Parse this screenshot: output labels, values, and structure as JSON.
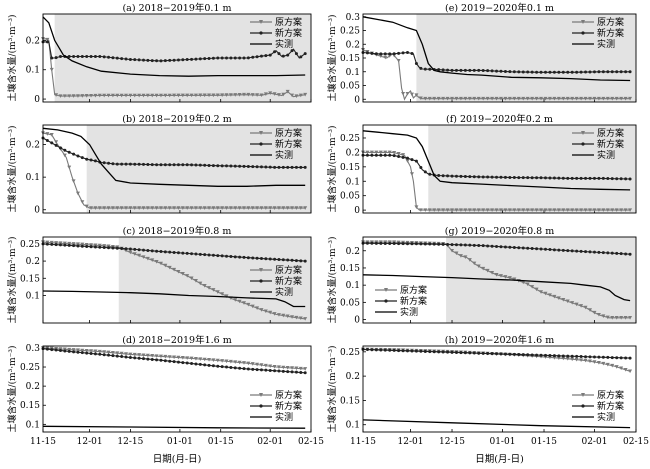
{
  "figure": {
    "ylabel": "土壤含水量/(m³·m⁻³)",
    "xlabel": "日期(月-日)",
    "xtick_labels": [
      "11-15",
      "12-01",
      "12-15",
      "01-01",
      "01-15",
      "02-01",
      "02-15"
    ],
    "legend_labels": [
      "原方案",
      "新方案",
      "实测"
    ],
    "colors": {
      "original": "#7a7a7a",
      "new": "#222222",
      "observed": "#000000",
      "shade": "#e3e3e3"
    }
  },
  "chart_data": [
    {
      "type": "line",
      "title": "(a) 2018−2019年0.1 m",
      "ylim": [
        -0.01,
        0.29
      ],
      "yticks": [
        0,
        0.1,
        0.2
      ],
      "shade_start": 4,
      "series": [
        {
          "name": "原方案",
          "x": [
            0,
            1,
            2,
            3,
            4,
            6,
            10,
            20,
            40,
            60,
            70,
            75,
            78,
            82,
            84,
            86,
            90
          ],
          "values": [
            0.205,
            0.205,
            0.2,
            0.1,
            0.015,
            0.01,
            0.01,
            0.012,
            0.012,
            0.013,
            0.015,
            0.013,
            0.02,
            0.012,
            0.025,
            0.008,
            0.015
          ]
        },
        {
          "name": "新方案",
          "x": [
            0,
            2,
            3,
            4,
            6,
            10,
            20,
            30,
            40,
            50,
            60,
            70,
            78,
            80,
            82,
            84,
            86,
            88,
            90
          ],
          "values": [
            0.195,
            0.195,
            0.14,
            0.14,
            0.145,
            0.145,
            0.145,
            0.135,
            0.13,
            0.135,
            0.14,
            0.14,
            0.15,
            0.165,
            0.145,
            0.15,
            0.17,
            0.14,
            0.155
          ]
        },
        {
          "name": "实测",
          "x": [
            0,
            2,
            4,
            7,
            10,
            15,
            20,
            30,
            40,
            50,
            60,
            70,
            80,
            90
          ],
          "values": [
            0.28,
            0.26,
            0.2,
            0.15,
            0.13,
            0.11,
            0.095,
            0.085,
            0.08,
            0.078,
            0.08,
            0.08,
            0.08,
            0.082
          ]
        }
      ]
    },
    {
      "type": "line",
      "title": "(b) 2018−2019年0.2 m",
      "ylim": [
        -0.01,
        0.26
      ],
      "yticks": [
        0,
        0.1,
        0.2
      ],
      "shade_start": 15,
      "series": [
        {
          "name": "原方案",
          "x": [
            0,
            3,
            5,
            8,
            10,
            12,
            14,
            16,
            20,
            40,
            60,
            80,
            90
          ],
          "values": [
            0.235,
            0.23,
            0.2,
            0.16,
            0.1,
            0.05,
            0.015,
            0.005,
            0.005,
            0.005,
            0.005,
            0.005,
            0.005
          ]
        },
        {
          "name": "新方案",
          "x": [
            0,
            4,
            8,
            12,
            15,
            18,
            20,
            25,
            30,
            40,
            50,
            60,
            70,
            80,
            90
          ],
          "values": [
            0.22,
            0.2,
            0.18,
            0.165,
            0.155,
            0.15,
            0.145,
            0.14,
            0.14,
            0.138,
            0.138,
            0.135,
            0.133,
            0.13,
            0.13
          ]
        },
        {
          "name": "实测",
          "x": [
            0,
            5,
            10,
            13,
            16,
            18,
            20,
            23,
            25,
            30,
            40,
            50,
            60,
            70,
            80,
            90
          ],
          "values": [
            0.25,
            0.245,
            0.235,
            0.225,
            0.2,
            0.17,
            0.14,
            0.11,
            0.09,
            0.082,
            0.078,
            0.075,
            0.072,
            0.072,
            0.075,
            0.075
          ]
        }
      ]
    },
    {
      "type": "line",
      "title": "(c) 2018−2019年0.8 m",
      "ylim": [
        0.02,
        0.27
      ],
      "yticks": [
        0.1,
        0.15,
        0.2,
        0.25
      ],
      "shade_start": 26,
      "series": [
        {
          "name": "原方案",
          "x": [
            0,
            10,
            20,
            26,
            30,
            35,
            40,
            45,
            50,
            55,
            60,
            65,
            70,
            75,
            80,
            85,
            90
          ],
          "values": [
            0.255,
            0.25,
            0.245,
            0.24,
            0.225,
            0.21,
            0.195,
            0.175,
            0.155,
            0.13,
            0.11,
            0.09,
            0.075,
            0.058,
            0.045,
            0.038,
            0.032
          ]
        },
        {
          "name": "新方案",
          "x": [
            0,
            10,
            20,
            30,
            40,
            50,
            60,
            70,
            80,
            90
          ],
          "values": [
            0.25,
            0.245,
            0.24,
            0.235,
            0.228,
            0.222,
            0.216,
            0.21,
            0.205,
            0.2
          ]
        },
        {
          "name": "实测",
          "x": [
            0,
            10,
            20,
            30,
            40,
            50,
            60,
            70,
            80,
            83,
            86,
            90
          ],
          "values": [
            0.113,
            0.112,
            0.11,
            0.108,
            0.105,
            0.1,
            0.097,
            0.093,
            0.09,
            0.082,
            0.068,
            0.068
          ]
        }
      ]
    },
    {
      "type": "line",
      "title": "(d) 2018−2019年1.6 m",
      "ylim": [
        0.08,
        0.305
      ],
      "yticks": [
        0.1,
        0.15,
        0.2,
        0.25,
        0.3
      ],
      "shade_start": null,
      "series": [
        {
          "name": "原方案",
          "x": [
            0,
            10,
            20,
            30,
            40,
            50,
            60,
            70,
            80,
            90
          ],
          "values": [
            0.3,
            0.295,
            0.29,
            0.283,
            0.278,
            0.273,
            0.267,
            0.26,
            0.25,
            0.245
          ]
        },
        {
          "name": "新方案",
          "x": [
            0,
            10,
            20,
            30,
            40,
            50,
            60,
            70,
            80,
            90
          ],
          "values": [
            0.298,
            0.29,
            0.283,
            0.275,
            0.268,
            0.26,
            0.252,
            0.245,
            0.24,
            0.235
          ]
        },
        {
          "name": "实测",
          "x": [
            0,
            30,
            60,
            90
          ],
          "values": [
            0.095,
            0.093,
            0.091,
            0.09
          ]
        }
      ]
    },
    {
      "type": "line",
      "title": "(e) 2019−2020年0.1 m",
      "ylim": [
        -0.01,
        0.31
      ],
      "yticks": [
        0,
        0.05,
        0.1,
        0.15,
        0.2,
        0.25,
        0.3
      ],
      "shade_start": 18,
      "series": [
        {
          "name": "原方案",
          "x": [
            0,
            2,
            5,
            8,
            10,
            12,
            13,
            14,
            15,
            16,
            17,
            18,
            19,
            20,
            25,
            30,
            40,
            50,
            60,
            70,
            80,
            90
          ],
          "values": [
            0.18,
            0.17,
            0.16,
            0.15,
            0.165,
            0.14,
            0.04,
            0.0,
            0.02,
            0.03,
            0.005,
            0.015,
            0.005,
            0.002,
            0.002,
            0.002,
            0.002,
            0.002,
            0.002,
            0.002,
            0.002,
            0.002
          ]
        },
        {
          "name": "新方案",
          "x": [
            0,
            5,
            10,
            15,
            17,
            18,
            19,
            20,
            25,
            30,
            40,
            50,
            60,
            70,
            80,
            90
          ],
          "values": [
            0.17,
            0.165,
            0.165,
            0.17,
            0.165,
            0.13,
            0.115,
            0.11,
            0.108,
            0.105,
            0.105,
            0.1,
            0.098,
            0.098,
            0.1,
            0.1
          ]
        },
        {
          "name": "实测",
          "x": [
            0,
            5,
            10,
            15,
            18,
            20,
            22,
            24,
            26,
            30,
            35,
            40,
            50,
            60,
            70,
            80,
            90
          ],
          "values": [
            0.3,
            0.29,
            0.28,
            0.26,
            0.25,
            0.2,
            0.13,
            0.105,
            0.1,
            0.095,
            0.09,
            0.088,
            0.08,
            0.078,
            0.075,
            0.07,
            0.068
          ]
        }
      ]
    },
    {
      "type": "line",
      "title": "(f) 2019−2020年0.2 m",
      "ylim": [
        -0.01,
        0.295
      ],
      "yticks": [
        0,
        0.05,
        0.1,
        0.15,
        0.2,
        0.25
      ],
      "shade_start": 22,
      "series": [
        {
          "name": "原方案",
          "x": [
            0,
            5,
            10,
            14,
            16,
            17,
            18,
            19,
            20,
            30,
            40,
            60,
            80,
            90
          ],
          "values": [
            0.2,
            0.2,
            0.2,
            0.19,
            0.15,
            0.1,
            0.01,
            0.0,
            0.0,
            0.0,
            0.0,
            0.0,
            0.0,
            0.0
          ]
        },
        {
          "name": "新方案",
          "x": [
            0,
            5,
            10,
            15,
            18,
            20,
            22,
            25,
            30,
            40,
            50,
            60,
            70,
            80,
            90
          ],
          "values": [
            0.19,
            0.19,
            0.19,
            0.18,
            0.17,
            0.14,
            0.125,
            0.12,
            0.118,
            0.115,
            0.113,
            0.112,
            0.11,
            0.11,
            0.108
          ]
        },
        {
          "name": "实测",
          "x": [
            0,
            5,
            10,
            15,
            18,
            20,
            22,
            24,
            26,
            30,
            40,
            50,
            60,
            70,
            80,
            90
          ],
          "values": [
            0.275,
            0.27,
            0.265,
            0.26,
            0.25,
            0.22,
            0.17,
            0.12,
            0.1,
            0.095,
            0.09,
            0.085,
            0.08,
            0.075,
            0.072,
            0.07
          ]
        }
      ]
    },
    {
      "type": "line",
      "title": "(g) 2019−2020年0.8 m",
      "ylim": [
        -0.01,
        0.24
      ],
      "yticks": [
        0,
        0.05,
        0.1,
        0.15,
        0.2
      ],
      "shade_start": 28,
      "series": [
        {
          "name": "原方案",
          "x": [
            0,
            10,
            20,
            28,
            30,
            33,
            35,
            38,
            40,
            45,
            50,
            55,
            60,
            65,
            70,
            75,
            78,
            80,
            83,
            85,
            90
          ],
          "values": [
            0.225,
            0.225,
            0.222,
            0.22,
            0.2,
            0.185,
            0.18,
            0.16,
            0.15,
            0.13,
            0.12,
            0.105,
            0.08,
            0.065,
            0.05,
            0.035,
            0.02,
            0.012,
            0.005,
            0.005,
            0.005
          ]
        },
        {
          "name": "新方案",
          "x": [
            0,
            10,
            20,
            30,
            40,
            50,
            60,
            70,
            80,
            90
          ],
          "values": [
            0.222,
            0.221,
            0.22,
            0.218,
            0.215,
            0.21,
            0.205,
            0.2,
            0.195,
            0.19
          ]
        },
        {
          "name": "实测",
          "x": [
            0,
            10,
            20,
            30,
            40,
            50,
            60,
            70,
            75,
            80,
            83,
            85,
            88,
            90
          ],
          "values": [
            0.13,
            0.128,
            0.125,
            0.122,
            0.118,
            0.115,
            0.11,
            0.105,
            0.1,
            0.095,
            0.085,
            0.07,
            0.058,
            0.055
          ]
        }
      ]
    },
    {
      "type": "line",
      "title": "(h) 2019−2020年1.6 m",
      "ylim": [
        0.085,
        0.262
      ],
      "yticks": [
        0.1,
        0.15,
        0.2,
        0.25
      ],
      "shade_start": null,
      "series": [
        {
          "name": "原方案",
          "x": [
            0,
            10,
            20,
            30,
            40,
            50,
            60,
            70,
            75,
            80,
            85,
            90
          ],
          "values": [
            0.255,
            0.254,
            0.252,
            0.25,
            0.247,
            0.244,
            0.24,
            0.235,
            0.232,
            0.227,
            0.22,
            0.21
          ]
        },
        {
          "name": "新方案",
          "x": [
            0,
            10,
            20,
            30,
            40,
            50,
            60,
            70,
            80,
            90
          ],
          "values": [
            0.255,
            0.253,
            0.251,
            0.249,
            0.247,
            0.245,
            0.243,
            0.241,
            0.239,
            0.237
          ]
        },
        {
          "name": "实测",
          "x": [
            0,
            30,
            60,
            90
          ],
          "values": [
            0.11,
            0.104,
            0.098,
            0.094
          ]
        }
      ]
    }
  ]
}
